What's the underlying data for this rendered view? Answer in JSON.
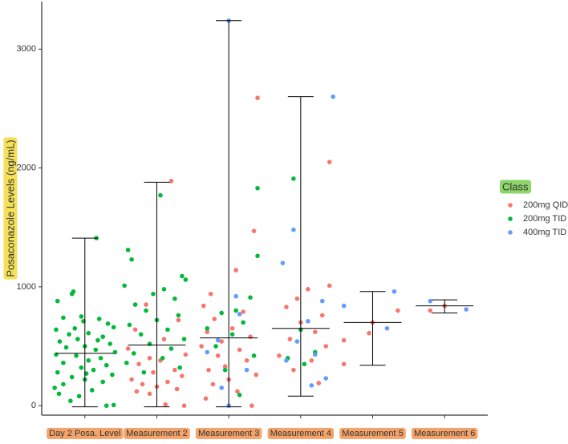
{
  "chart_data": {
    "type": "strip",
    "y_label": "Posaconazole Levels (ng/mL)",
    "categories": [
      "Day 2 Posa. Level",
      "Measurement 2",
      "Measurement 3",
      "Measurement 4",
      "Measurement 5",
      "Measurement 6"
    ],
    "xlim": [
      0.4,
      6.6
    ],
    "ylim": [
      -80,
      3400
    ],
    "yticks": [
      0,
      1000,
      2000,
      3000
    ],
    "legend_title": "Class",
    "legend_position": "right",
    "series": [
      {
        "name": "200mg QID",
        "color": "#F8766D",
        "x": [
          2.2,
          1.85,
          2.3,
          1.7,
          2.1,
          1.6,
          2.4,
          1.9,
          2.05,
          1.75,
          2.25,
          1.95,
          2.35,
          1.65,
          2.15,
          1.8,
          2.0,
          2.28,
          1.72,
          1.9,
          2.12,
          2.38,
          3.4,
          3.35,
          3.1,
          2.75,
          2.65,
          3.2,
          2.8,
          3.05,
          2.7,
          3.3,
          2.9,
          2.62,
          3.15,
          2.85,
          3.25,
          2.95,
          2.72,
          3.38,
          3.0,
          2.78,
          3.12,
          2.68,
          3.32,
          4.4,
          4.4,
          4.1,
          3.95,
          3.8,
          4.3,
          4.0,
          4.2,
          3.85,
          4.35,
          3.7,
          4.15,
          3.9,
          4.25,
          5.35,
          5.0,
          4.95,
          4.6,
          4.6,
          5.8,
          6.0
        ],
        "values": [
          1890,
          850,
          720,
          640,
          560,
          480,
          430,
          400,
          380,
          350,
          300,
          280,
          250,
          220,
          200,
          180,
          160,
          140,
          120,
          100,
          10,
          0,
          2590,
          1470,
          1140,
          940,
          840,
          790,
          730,
          650,
          620,
          580,
          540,
          500,
          470,
          420,
          380,
          330,
          300,
          260,
          220,
          180,
          120,
          60,
          0,
          2050,
          1010,
          980,
          900,
          830,
          760,
          700,
          620,
          560,
          500,
          420,
          380,
          300,
          190,
          800,
          700,
          610,
          550,
          350,
          800,
          840
        ]
      },
      {
        "name": "200mg TID",
        "color": "#00BA38",
        "x": [
          1.16,
          0.84,
          0.82,
          0.62,
          0.7,
          0.95,
          1.2,
          1.32,
          1.4,
          0.6,
          1.05,
          0.78,
          1.25,
          0.9,
          0.65,
          1.35,
          1.0,
          0.74,
          1.15,
          1.42,
          0.6,
          0.88,
          1.22,
          1.05,
          0.7,
          1.3,
          0.95,
          1.12,
          0.62,
          1.38,
          0.82,
          1.0,
          1.25,
          0.7,
          0.58,
          1.1,
          0.64,
          0.92,
          0.8,
          1.3,
          1.4,
          1.02,
          1.18,
          0.86,
          0.98,
          2.05,
          1.6,
          1.65,
          2.35,
          2.4,
          1.55,
          2.1,
          1.95,
          2.25,
          1.7,
          1.85,
          2.3,
          2.0,
          1.62,
          2.15,
          1.78,
          2.38,
          1.9,
          2.2,
          1.68,
          2.08,
          1.58,
          2.32,
          1.82,
          3.4,
          3.4,
          3.3,
          3.1,
          2.9,
          3.2,
          2.7,
          3.05,
          2.82,
          3.35,
          2.95,
          3.15,
          3.9,
          4.0,
          4.2,
          3.82,
          4.05
        ],
        "values": [
          1410,
          960,
          940,
          880,
          740,
          750,
          730,
          690,
          660,
          640,
          610,
          600,
          580,
          560,
          540,
          520,
          500,
          490,
          470,
          450,
          430,
          420,
          400,
          380,
          360,
          340,
          320,
          300,
          280,
          260,
          240,
          220,
          200,
          180,
          150,
          130,
          100,
          80,
          40,
          0,
          5,
          270,
          550,
          650,
          710,
          1770,
          1310,
          1230,
          1090,
          1060,
          1010,
          980,
          940,
          900,
          850,
          800,
          760,
          720,
          680,
          640,
          600,
          560,
          520,
          480,
          440,
          400,
          360,
          320,
          280,
          1830,
          1260,
          910,
          800,
          780,
          700,
          650,
          600,
          500,
          420,
          300,
          90,
          1910,
          640,
          450,
          400,
          350
        ]
      },
      {
        "name": "400mg TID",
        "color": "#619CFF",
        "x": [
          3.0,
          3.1,
          3.15,
          2.85,
          2.7,
          3.25,
          2.9,
          3.0,
          4.45,
          3.9,
          3.75,
          4.3,
          4.1,
          3.95,
          4.2,
          3.8,
          4.35,
          4.15,
          5.3,
          4.6,
          5.2,
          5.8,
          6.3
        ],
        "values": [
          3240,
          920,
          770,
          550,
          450,
          300,
          150,
          0,
          2600,
          1480,
          1200,
          880,
          710,
          540,
          430,
          380,
          230,
          170,
          960,
          840,
          650,
          880,
          810
        ]
      }
    ],
    "summary": {
      "mean": [
        440,
        510,
        570,
        650,
        700,
        840
      ],
      "low": [
        -10,
        -10,
        -10,
        80,
        340,
        780
      ],
      "high": [
        1410,
        1880,
        3240,
        2600,
        960,
        890
      ]
    }
  }
}
